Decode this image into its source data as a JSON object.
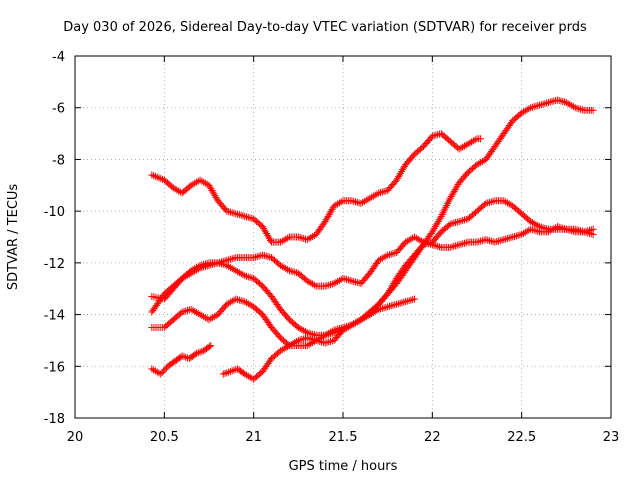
{
  "chart_data": {
    "type": "scatter",
    "title": "Day 030 of 2026, Sidereal Day-to-day VTEC variation (SDTVAR) for receiver prds",
    "xlabel": "GPS time / hours",
    "ylabel": "SDTVAR / TECUs",
    "xlim": [
      20,
      23
    ],
    "ylim": [
      -18,
      -4
    ],
    "xticks": [
      "20",
      "20.5",
      "21",
      "21.5",
      "22",
      "22.5",
      "23"
    ],
    "yticks": [
      "-4",
      "-6",
      "-8",
      "-10",
      "-12",
      "-14",
      "-16",
      "-18"
    ],
    "grid": true,
    "marker": "+",
    "color": "#ff0000",
    "series": [
      {
        "x": [
          20.43,
          20.5,
          20.55,
          20.6,
          20.65,
          20.7,
          20.75,
          20.8,
          20.85,
          20.9,
          20.95,
          21.0,
          21.05,
          21.1,
          21.15,
          21.2,
          21.25,
          21.3,
          21.35,
          21.4,
          21.45,
          21.5,
          21.55,
          21.6,
          21.65,
          21.7,
          21.75,
          21.8,
          21.85,
          21.9,
          21.95,
          22.0,
          22.05,
          22.1,
          22.15,
          22.2,
          22.25,
          22.27
        ],
        "y": [
          -8.6,
          -8.8,
          -9.1,
          -9.3,
          -9.0,
          -8.8,
          -9.0,
          -9.6,
          -10.0,
          -10.1,
          -10.2,
          -10.3,
          -10.6,
          -11.2,
          -11.2,
          -11.0,
          -11.0,
          -11.1,
          -10.9,
          -10.4,
          -9.8,
          -9.6,
          -9.6,
          -9.7,
          -9.5,
          -9.3,
          -9.2,
          -8.8,
          -8.2,
          -7.8,
          -7.5,
          -7.1,
          -7.0,
          -7.3,
          -7.6,
          -7.4,
          -7.2,
          -7.2
        ]
      },
      {
        "x": [
          20.43,
          20.5,
          20.55,
          20.6,
          20.65,
          20.7,
          20.75,
          20.8,
          20.85,
          20.9,
          20.95,
          21.0,
          21.05,
          21.1,
          21.15,
          21.2,
          21.25,
          21.3,
          21.35,
          21.4,
          21.45,
          21.5,
          21.55,
          21.6,
          21.65,
          21.7,
          21.75,
          21.8,
          21.85,
          21.9,
          21.95,
          22.0,
          22.05,
          22.1,
          22.15,
          22.2,
          22.25,
          22.3,
          22.35,
          22.4,
          22.45,
          22.5,
          22.55,
          22.6,
          22.65,
          22.7,
          22.75,
          22.8,
          22.85,
          22.9
        ],
        "y": [
          -13.9,
          -13.2,
          -12.9,
          -12.6,
          -12.3,
          -12.1,
          -12.0,
          -12.0,
          -11.9,
          -11.8,
          -11.8,
          -11.8,
          -11.7,
          -11.8,
          -12.1,
          -12.3,
          -12.4,
          -12.7,
          -12.9,
          -12.9,
          -12.8,
          -12.6,
          -12.7,
          -12.8,
          -12.4,
          -11.9,
          -11.7,
          -11.6,
          -11.2,
          -11.0,
          -11.2,
          -11.3,
          -11.4,
          -11.4,
          -11.3,
          -11.2,
          -11.2,
          -11.1,
          -11.2,
          -11.1,
          -11.0,
          -10.9,
          -10.7,
          -10.8,
          -10.8,
          -10.6,
          -10.7,
          -10.7,
          -10.8,
          -10.9
        ]
      },
      {
        "x": [
          20.43,
          20.5,
          20.55,
          20.6,
          20.65,
          20.7,
          20.75,
          20.8,
          20.85,
          20.9,
          20.95,
          21.0,
          21.05,
          21.1,
          21.15,
          21.2,
          21.25,
          21.3,
          21.35,
          21.4,
          21.45,
          21.5,
          21.55,
          21.6,
          21.65,
          21.7,
          21.75,
          21.8,
          21.85,
          21.9,
          21.95,
          22.0,
          22.05,
          22.1,
          22.15,
          22.2,
          22.25,
          22.3,
          22.35,
          22.4,
          22.45,
          22.5,
          22.55,
          22.6,
          22.65,
          22.7,
          22.75,
          22.8,
          22.85,
          22.9
        ],
        "y": [
          -13.3,
          -13.4,
          -13.0,
          -12.6,
          -12.4,
          -12.2,
          -12.1,
          -12.0,
          -12.1,
          -12.3,
          -12.5,
          -12.6,
          -12.9,
          -13.3,
          -13.8,
          -14.2,
          -14.5,
          -14.7,
          -14.8,
          -14.8,
          -14.6,
          -14.5,
          -14.4,
          -14.2,
          -13.9,
          -13.6,
          -13.2,
          -12.6,
          -12.1,
          -11.7,
          -11.3,
          -11.2,
          -10.8,
          -10.5,
          -10.4,
          -10.3,
          -10.0,
          -9.7,
          -9.6,
          -9.6,
          -9.8,
          -10.1,
          -10.4,
          -10.6,
          -10.7,
          -10.7,
          -10.7,
          -10.8,
          -10.8,
          -10.7
        ]
      },
      {
        "x": [
          20.43,
          20.5,
          20.55,
          20.6,
          20.65,
          20.7,
          20.75,
          20.8,
          20.85,
          20.9,
          20.95,
          21.0,
          21.05,
          21.1,
          21.15,
          21.2,
          21.25,
          21.3,
          21.35,
          21.4,
          21.45,
          21.5,
          21.55,
          21.6,
          21.65,
          21.7,
          21.75,
          21.8,
          21.85,
          21.9
        ],
        "y": [
          -14.5,
          -14.5,
          -14.2,
          -13.9,
          -13.8,
          -14.0,
          -14.2,
          -14.0,
          -13.6,
          -13.4,
          -13.5,
          -13.7,
          -14.0,
          -14.5,
          -14.9,
          -15.2,
          -15.2,
          -15.2,
          -15.0,
          -14.8,
          -14.7,
          -14.6,
          -14.4,
          -14.2,
          -14.0,
          -13.8,
          -13.7,
          -13.6,
          -13.5,
          -13.4
        ]
      },
      {
        "x": [
          20.43,
          20.48,
          20.52,
          20.56,
          20.6,
          20.64,
          20.68,
          20.72,
          20.76
        ],
        "y": [
          -16.1,
          -16.3,
          -16.0,
          -15.8,
          -15.6,
          -15.7,
          -15.5,
          -15.4,
          -15.2
        ]
      },
      {
        "x": [
          20.83,
          20.87,
          20.91,
          20.95,
          21.0,
          21.05,
          21.1,
          21.15,
          21.2,
          21.25,
          21.3,
          21.35,
          21.4,
          21.45,
          21.5,
          21.55,
          21.6,
          21.65,
          21.7,
          21.75,
          21.8,
          21.85,
          21.9,
          21.95,
          22.0,
          22.05,
          22.1,
          22.15,
          22.2,
          22.25,
          22.3,
          22.35,
          22.4,
          22.45,
          22.5,
          22.55,
          22.6,
          22.65,
          22.7,
          22.75,
          22.8,
          22.85,
          22.9
        ],
        "y": [
          -16.3,
          -16.2,
          -16.1,
          -16.3,
          -16.5,
          -16.2,
          -15.7,
          -15.4,
          -15.2,
          -15.0,
          -14.9,
          -15.0,
          -15.1,
          -15.0,
          -14.6,
          -14.4,
          -14.2,
          -14.0,
          -13.6,
          -13.2,
          -12.8,
          -12.3,
          -11.8,
          -11.3,
          -10.8,
          -10.2,
          -9.5,
          -8.9,
          -8.5,
          -8.2,
          -8.0,
          -7.5,
          -7.0,
          -6.5,
          -6.2,
          -6.0,
          -5.9,
          -5.8,
          -5.7,
          -5.8,
          -6.0,
          -6.1,
          -6.1
        ]
      }
    ]
  }
}
